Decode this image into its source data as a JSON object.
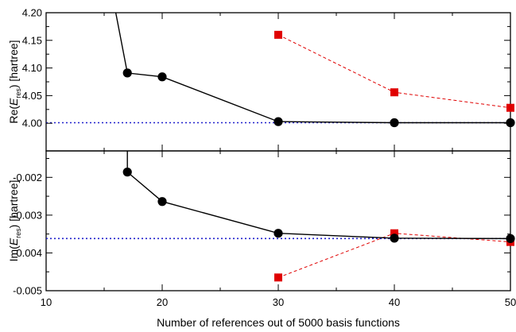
{
  "chart_data": {
    "type": "line",
    "xlabel": "Number of references out of 5000 basis functions",
    "xlim": [
      10,
      50
    ],
    "x_ticks": [
      "10",
      "20",
      "30",
      "40",
      "50"
    ],
    "panels": [
      {
        "id": "real",
        "ylabel_prefix": "Re(",
        "ylabel_E": "E",
        "ylabel_sub": "res",
        "ylabel_suffix": ") [hartree]",
        "ylim": [
          3.95,
          4.2
        ],
        "y_ticks": [
          {
            "value": 4.0,
            "label": "4.00"
          },
          {
            "value": 4.05,
            "label": "4.05"
          },
          {
            "value": 4.1,
            "label": "4.10"
          },
          {
            "value": 4.15,
            "label": "4.15"
          },
          {
            "value": 4.2,
            "label": "4.20"
          }
        ],
        "reference_line": 4.001,
        "series": [
          {
            "style": "black-circles-solid",
            "color": "#000000",
            "x": [
              16,
              17,
              20,
              30,
              40,
              50
            ],
            "y": [
              4.2,
              4.091,
              4.084,
              4.003,
              4.001,
              4.001
            ],
            "markers": [
              false,
              true,
              true,
              true,
              true,
              true
            ]
          },
          {
            "style": "red-squares-dashed",
            "color": "#e00000",
            "x": [
              30,
              40,
              50
            ],
            "y": [
              4.16,
              4.056,
              4.028
            ],
            "markers": [
              true,
              true,
              true
            ]
          }
        ]
      },
      {
        "id": "imag",
        "ylabel_prefix": "Im(",
        "ylabel_E": "E",
        "ylabel_sub": "res",
        "ylabel_suffix": ") [hartree]",
        "ylim": [
          -0.005,
          -0.0013
        ],
        "y_ticks": [
          {
            "value": -0.005,
            "label": "-0.005"
          },
          {
            "value": -0.004,
            "label": "-0.004"
          },
          {
            "value": -0.003,
            "label": "-0.003"
          },
          {
            "value": -0.002,
            "label": "-0.002"
          }
        ],
        "reference_line": -0.00362,
        "series": [
          {
            "style": "black-circles-solid",
            "color": "#000000",
            "x": [
              17,
              17,
              20,
              30,
              40,
              50
            ],
            "y": [
              -0.0013,
              -0.00186,
              -0.00264,
              -0.00348,
              -0.00361,
              -0.00362
            ],
            "markers": [
              false,
              true,
              true,
              true,
              true,
              true
            ]
          },
          {
            "style": "red-squares-dashed",
            "color": "#e00000",
            "x": [
              30,
              40,
              50
            ],
            "y": [
              -0.00465,
              -0.00348,
              -0.00371
            ],
            "markers": [
              true,
              true,
              true
            ]
          }
        ]
      }
    ],
    "reference_line_color": "#2020cc"
  }
}
